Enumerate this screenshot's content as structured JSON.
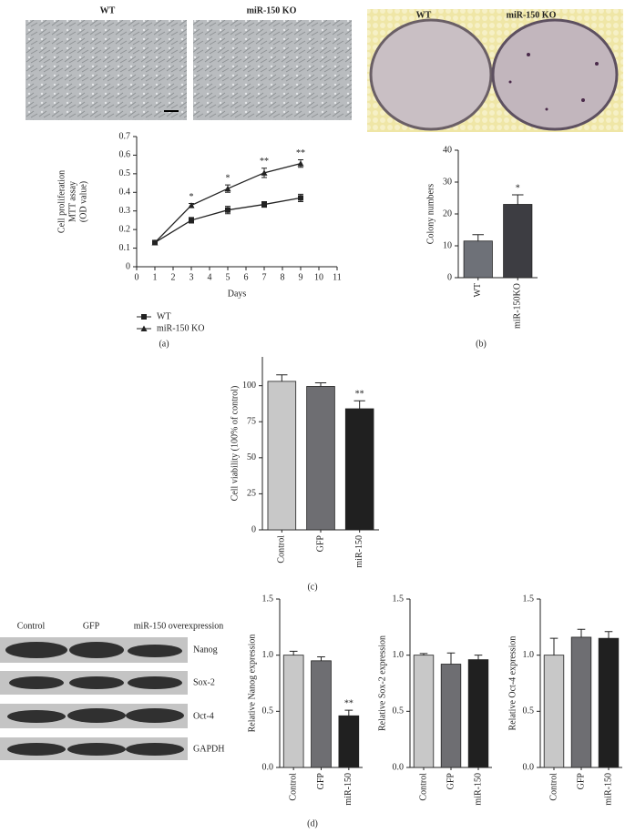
{
  "photos": {
    "a_left": "WT",
    "a_right": "miR-150 KO",
    "b_left": "WT",
    "b_right": "miR-150 KO"
  },
  "blot": {
    "columns": [
      "Control",
      "GFP",
      "miR-150 overexpression"
    ],
    "rows": [
      "Nanog",
      "Sox-2",
      "Oct-4",
      "GAPDH"
    ]
  },
  "panel_labels": [
    "(a)",
    "(b)",
    "(c)",
    "(d)"
  ],
  "chart_data": [
    {
      "type": "line",
      "ylabel": [
        "Cell proliferation",
        "MTT assay",
        "(OD value)"
      ],
      "xlabel": "Days",
      "xlim": [
        0,
        11
      ],
      "xticks": [
        0,
        1,
        2,
        3,
        4,
        5,
        6,
        7,
        8,
        9,
        10,
        11
      ],
      "ylim": [
        0,
        0.7
      ],
      "yticks": [
        0,
        0.1,
        0.2,
        0.3,
        0.4,
        0.5,
        0.6,
        0.7
      ],
      "x": [
        1,
        3,
        5,
        7,
        9
      ],
      "legend": "below",
      "series": [
        {
          "name": "WT",
          "color": "#222222",
          "marker": "square",
          "values": [
            0.13,
            0.25,
            0.305,
            0.335,
            0.37
          ],
          "errors": [
            0.005,
            0.015,
            0.02,
            0.015,
            0.02
          ]
        },
        {
          "name": "miR-150 KO",
          "color": "#222222",
          "marker": "triangle",
          "values": [
            0.13,
            0.33,
            0.42,
            0.505,
            0.555
          ],
          "errors": [
            0.005,
            0.01,
            0.02,
            0.025,
            0.02
          ]
        }
      ],
      "annotations": [
        {
          "x": 3,
          "text": "*"
        },
        {
          "x": 5,
          "text": "*"
        },
        {
          "x": 7,
          "text": "**"
        },
        {
          "x": 9,
          "text": "**"
        }
      ]
    },
    {
      "type": "bar",
      "ylabel": [
        "Colony numbers"
      ],
      "ylim": [
        0,
        40
      ],
      "yticks": [
        0,
        10,
        20,
        30,
        40
      ],
      "categories": [
        "WT",
        "miR-150KO"
      ],
      "values": [
        11.5,
        23
      ],
      "errors": [
        2,
        3
      ],
      "colors": [
        "#6e7178",
        "#3d3d42"
      ],
      "annotations": [
        {
          "category": "miR-150KO",
          "text": "*"
        }
      ]
    },
    {
      "type": "bar",
      "ylabel": [
        "Cell viability (100% of control)"
      ],
      "ylim": [
        0,
        120
      ],
      "yticks": [
        0,
        25,
        50,
        75,
        100
      ],
      "categories": [
        "Control",
        "GFP",
        "miR-150"
      ],
      "values": [
        103,
        99.5,
        84
      ],
      "errors": [
        4.5,
        2.5,
        5.5
      ],
      "colors": [
        "#c8c8c8",
        "#6e6e72",
        "#202020"
      ],
      "annotations": [
        {
          "category": "miR-150",
          "text": "**"
        }
      ]
    },
    {
      "type": "bar",
      "ylabel": [
        "Relative Nanog expression"
      ],
      "ylim": [
        0,
        1.5
      ],
      "yticks": [
        {
          "value": 0,
          "label": "0.0"
        },
        0.5,
        {
          "value": 1,
          "label": "1.0"
        },
        1.5
      ],
      "categories": [
        "Control",
        "GFP",
        "miR-150"
      ],
      "values": [
        1.0,
        0.95,
        0.46
      ],
      "errors": [
        0.035,
        0.035,
        0.05
      ],
      "colors": [
        "#c8c8c8",
        "#6e6e72",
        "#202020"
      ],
      "annotations": [
        {
          "category": "miR-150",
          "text": "**"
        }
      ]
    },
    {
      "type": "bar",
      "ylabel": [
        "Relative Sox-2 expression"
      ],
      "ylim": [
        0,
        1.5
      ],
      "yticks": [
        {
          "value": 0,
          "label": "0.0"
        },
        0.5,
        {
          "value": 1,
          "label": "1.0"
        },
        1.5
      ],
      "categories": [
        "Control",
        "GFP",
        "miR-150"
      ],
      "values": [
        1.0,
        0.92,
        0.96
      ],
      "errors": [
        0.015,
        0.1,
        0.04
      ],
      "colors": [
        "#c8c8c8",
        "#6e6e72",
        "#202020"
      ]
    },
    {
      "type": "bar",
      "ylabel": [
        "Relative Oct-4 expression"
      ],
      "ylim": [
        0,
        1.5
      ],
      "yticks": [
        {
          "value": 0,
          "label": "0.0"
        },
        0.5,
        {
          "value": 1,
          "label": "1.0"
        },
        1.5
      ],
      "categories": [
        "Control",
        "GFP",
        "miR-150"
      ],
      "values": [
        1.0,
        1.16,
        1.15
      ],
      "errors": [
        0.15,
        0.07,
        0.06
      ],
      "colors": [
        "#c8c8c8",
        "#6e6e72",
        "#202020"
      ]
    }
  ]
}
